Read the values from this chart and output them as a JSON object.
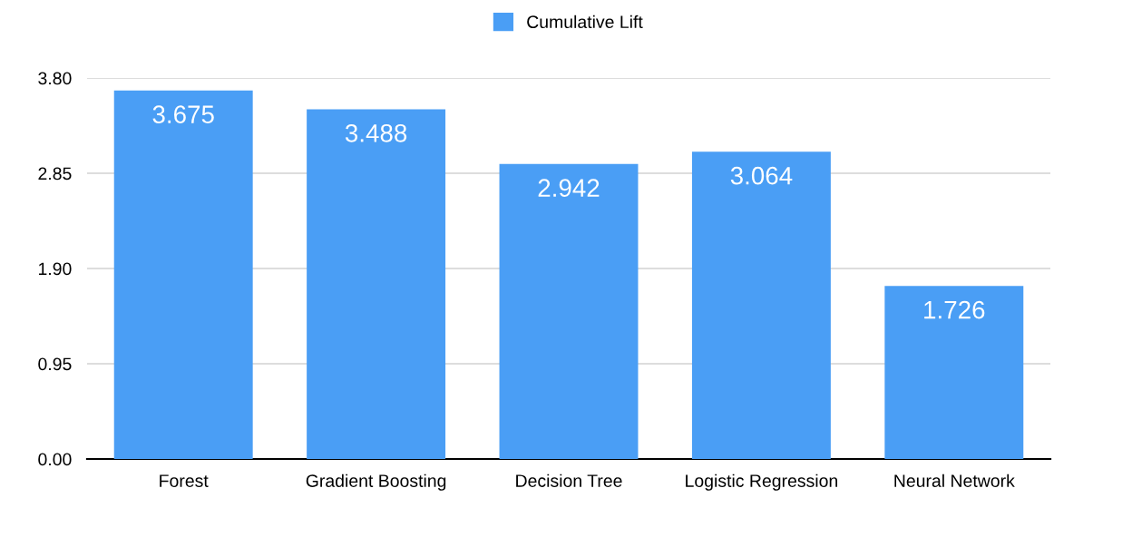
{
  "chart_data": {
    "type": "bar",
    "categories": [
      "Forest",
      "Gradient Boosting",
      "Decision Tree",
      "Logistic Regression",
      "Neural Network"
    ],
    "series": [
      {
        "name": "Cumulative Lift",
        "color": "#4a9ef5",
        "values": [
          3.675,
          3.488,
          2.942,
          3.064,
          1.726
        ]
      }
    ],
    "ylim": [
      0,
      3.8
    ],
    "yticks": [
      {
        "value": 0,
        "label": "0.00"
      },
      {
        "value": 0.95,
        "label": "0.95"
      },
      {
        "value": 1.9,
        "label": "1.90"
      },
      {
        "value": 2.85,
        "label": "2.85"
      },
      {
        "value": 3.8,
        "label": "3.80"
      }
    ],
    "grid": "y",
    "legend": "top",
    "data_labels": true
  }
}
